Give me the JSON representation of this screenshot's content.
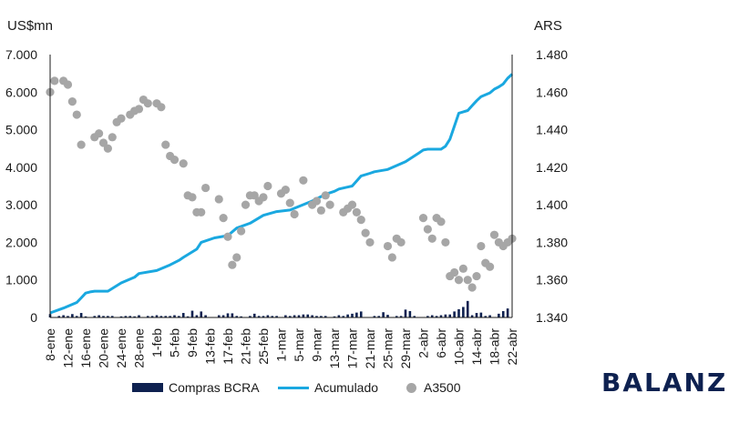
{
  "brand": "BALANZ",
  "chart_data": {
    "type": "combo",
    "left_axis_unit": "US$mn",
    "right_axis_unit": "ARS",
    "left_ylim": [
      0,
      7000
    ],
    "right_ylim": [
      1340,
      1480
    ],
    "left_ticks": [
      "0",
      "1.000",
      "2.000",
      "3.000",
      "4.000",
      "5.000",
      "6.000",
      "7.000"
    ],
    "left_tick_values": [
      0,
      1000,
      2000,
      3000,
      4000,
      5000,
      6000,
      7000
    ],
    "right_ticks": [
      "1.340",
      "1.360",
      "1.380",
      "1.400",
      "1.420",
      "1.440",
      "1.460",
      "1.480"
    ],
    "right_tick_values": [
      1340,
      1360,
      1380,
      1400,
      1420,
      1440,
      1460,
      1480
    ],
    "x_index_range": [
      0,
      104
    ],
    "x_tick_labels": [
      "8-ene",
      "12-ene",
      "16-ene",
      "20-ene",
      "24-ene",
      "28-ene",
      "1-feb",
      "5-feb",
      "9-feb",
      "13-feb",
      "17-feb",
      "21-feb",
      "25-feb",
      "1-mar",
      "5-mar",
      "9-mar",
      "13-mar",
      "17-mar",
      "21-mar",
      "25-mar",
      "29-mar",
      "2-abr",
      "6-abr",
      "10-abr",
      "14-abr",
      "18-abr",
      "22-abr"
    ],
    "x_tick_index": [
      0,
      4,
      8,
      12,
      16,
      20,
      24,
      28,
      32,
      36,
      40,
      44,
      48,
      52,
      56,
      60,
      64,
      68,
      72,
      76,
      80,
      84,
      88,
      92,
      96,
      100,
      104
    ],
    "legend": [
      "Compras BCRA",
      "Acumulado",
      "A3500"
    ],
    "colors": {
      "bars": "#0e2150",
      "line": "#1aa8e0",
      "dots": "#a6a6a6"
    },
    "series": [
      {
        "name": "Compras BCRA",
        "type": "bar",
        "axis": "left",
        "x": [
          0,
          2,
          3,
          4,
          5,
          6,
          7,
          8,
          10,
          11,
          12,
          13,
          14,
          16,
          17,
          18,
          19,
          20,
          22,
          23,
          24,
          25,
          26,
          27,
          28,
          29,
          30,
          31,
          32,
          33,
          34,
          35,
          38,
          39,
          40,
          41,
          42,
          43,
          45,
          46,
          47,
          48,
          49,
          50,
          51,
          53,
          54,
          55,
          56,
          57,
          58,
          59,
          60,
          61,
          62,
          64,
          65,
          66,
          67,
          68,
          69,
          70,
          73,
          74,
          75,
          76,
          78,
          79,
          80,
          81,
          82,
          85,
          86,
          87,
          88,
          89,
          90,
          91,
          92,
          93,
          94,
          95,
          96,
          97,
          98,
          99,
          101,
          102,
          103
        ],
        "values": [
          90,
          40,
          60,
          40,
          90,
          40,
          120,
          30,
          40,
          60,
          40,
          40,
          40,
          30,
          40,
          40,
          30,
          60,
          40,
          40,
          60,
          40,
          40,
          40,
          60,
          40,
          120,
          30,
          180,
          60,
          160,
          60,
          60,
          60,
          110,
          110,
          40,
          30,
          40,
          100,
          40,
          40,
          60,
          40,
          40,
          60,
          40,
          60,
          60,
          80,
          80,
          60,
          40,
          40,
          40,
          30,
          60,
          40,
          80,
          100,
          130,
          160,
          40,
          40,
          140,
          70,
          40,
          40,
          210,
          170,
          40,
          40,
          60,
          40,
          60,
          80,
          80,
          160,
          220,
          280,
          440,
          60,
          120,
          130,
          40,
          60,
          100,
          170,
          240
        ]
      },
      {
        "name": "Acumulado",
        "type": "line",
        "axis": "left",
        "x": [
          0,
          3,
          6,
          7,
          8,
          9,
          10,
          13,
          16,
          19,
          20,
          24,
          27,
          28,
          29,
          30,
          33,
          34,
          37,
          40,
          42,
          45,
          48,
          51,
          54,
          59,
          62,
          63,
          64,
          65,
          68,
          70,
          72,
          73,
          76,
          80,
          83,
          84,
          85,
          86,
          87,
          88,
          89,
          90,
          92,
          94,
          95,
          96,
          97,
          99,
          100,
          101,
          102,
          103,
          104
        ],
        "values": [
          120,
          250,
          400,
          520,
          650,
          680,
          700,
          700,
          920,
          1070,
          1170,
          1250,
          1400,
          1460,
          1520,
          1600,
          1820,
          2000,
          2120,
          2180,
          2380,
          2510,
          2720,
          2820,
          2860,
          3100,
          3280,
          3320,
          3360,
          3420,
          3500,
          3770,
          3840,
          3880,
          3940,
          4150,
          4380,
          4460,
          4480,
          4480,
          4480,
          4480,
          4560,
          4750,
          5440,
          5510,
          5640,
          5770,
          5880,
          5980,
          6080,
          6140,
          6220,
          6370,
          6480
        ]
      },
      {
        "name": "A3500",
        "type": "scatter",
        "axis": "right",
        "x": [
          0,
          1,
          3,
          4,
          5,
          6,
          7,
          10,
          11,
          12,
          13,
          14,
          15,
          16,
          18,
          19,
          20,
          21,
          22,
          24,
          25,
          26,
          27,
          28,
          30,
          31,
          32,
          33,
          34,
          35,
          38,
          39,
          40,
          41,
          42,
          43,
          44,
          45,
          46,
          47,
          48,
          49,
          52,
          53,
          54,
          55,
          57,
          59,
          60,
          61,
          62,
          63,
          66,
          67,
          68,
          69,
          70,
          71,
          72,
          76,
          77,
          78,
          79,
          84,
          85,
          86,
          87,
          88,
          89,
          90,
          91,
          92,
          93,
          94,
          95,
          96,
          97,
          98,
          99,
          100,
          101,
          102,
          103,
          104
        ],
        "values": [
          1460,
          1466,
          1466,
          1464,
          1455,
          1448,
          1432,
          1436,
          1438,
          1433,
          1430,
          1436,
          1444,
          1446,
          1448,
          1450,
          1451,
          1456,
          1454,
          1454,
          1452,
          1432,
          1426,
          1424,
          1422,
          1405,
          1404,
          1396,
          1396,
          1409,
          1403,
          1393,
          1383,
          1368,
          1372,
          1386,
          1400,
          1405,
          1405,
          1402,
          1404,
          1410,
          1406,
          1408,
          1401,
          1395,
          1413,
          1400,
          1402,
          1397,
          1405,
          1400,
          1396,
          1398,
          1400,
          1396,
          1392,
          1385,
          1380,
          1378,
          1372,
          1382,
          1380,
          1393,
          1387,
          1382,
          1393,
          1391,
          1380,
          1362,
          1364,
          1360,
          1366,
          1360,
          1356,
          1362,
          1378,
          1369,
          1367,
          1384,
          1380,
          1378,
          1380,
          1382
        ]
      }
    ]
  }
}
